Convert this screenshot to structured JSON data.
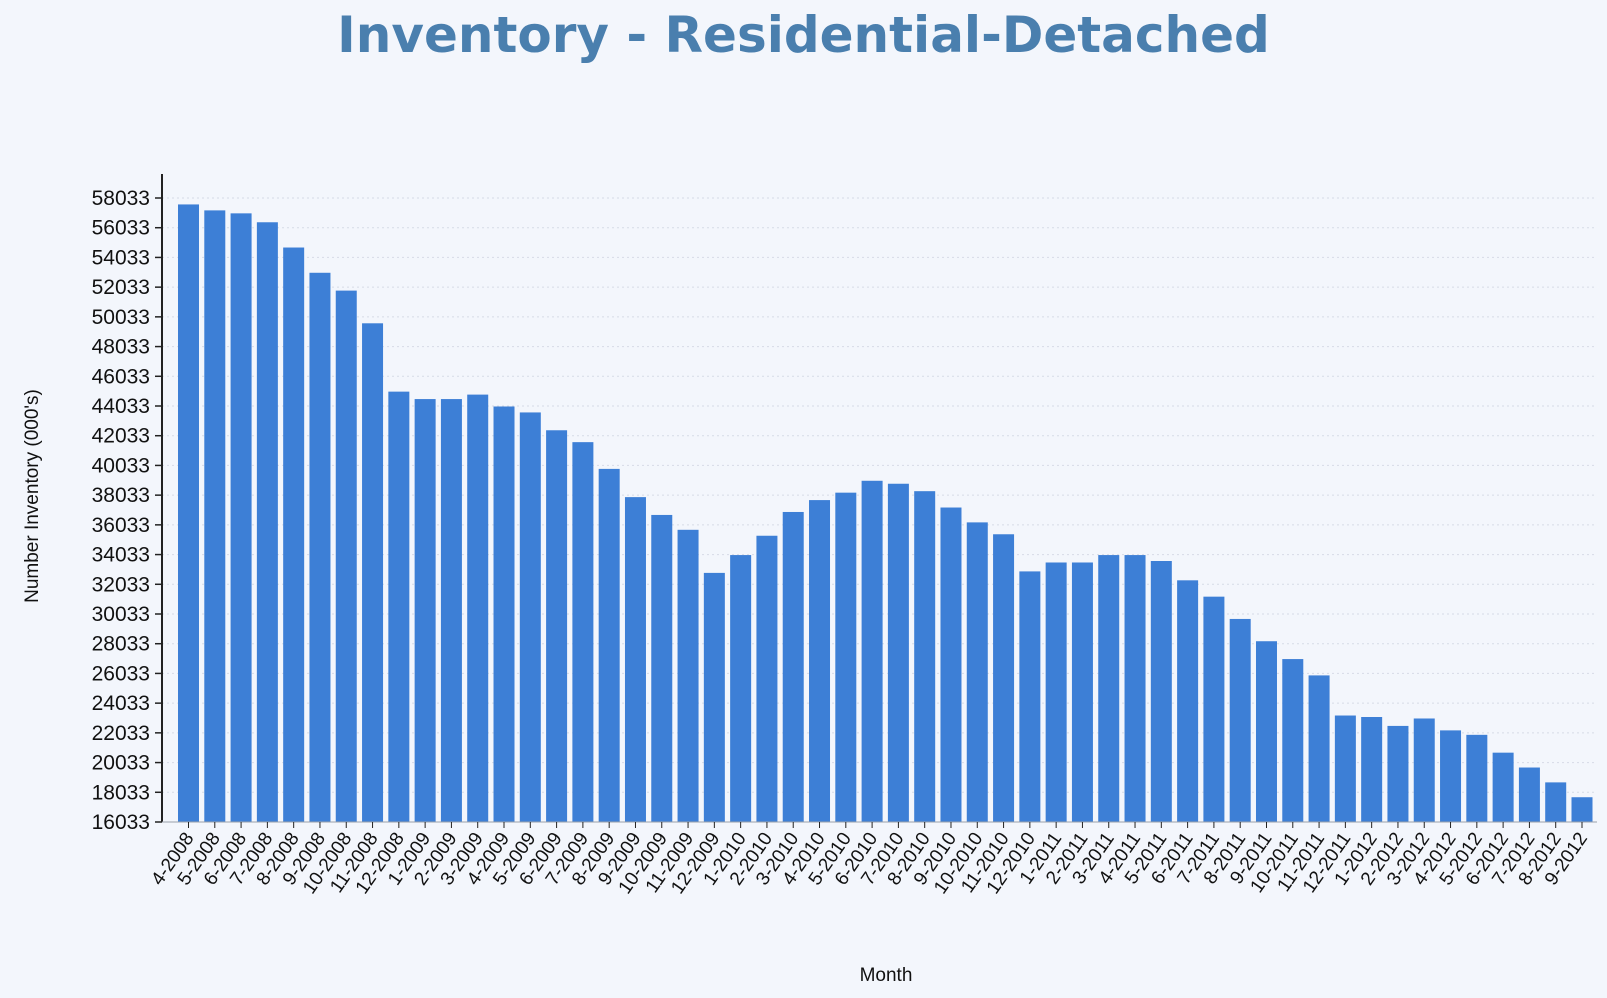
{
  "chart_data": {
    "type": "bar",
    "title": "Inventory - Residential-Detached",
    "xlabel": "Month",
    "ylabel": "Number Inventory (000's)",
    "ylim": [
      16033,
      58033
    ],
    "yticks": [
      16033,
      18033,
      20033,
      22033,
      24033,
      26033,
      28033,
      30033,
      32033,
      34033,
      36033,
      38033,
      40033,
      42033,
      44033,
      46033,
      48033,
      50033,
      52033,
      54033,
      56033,
      58033
    ],
    "grid": true,
    "legend": "none",
    "colors": {
      "bar": "#3d7fd6",
      "title": "#4a7fae",
      "axis": "#222222",
      "grid": "#d6dbe6"
    },
    "categories": [
      "4-2008",
      "5-2008",
      "6-2008",
      "7-2008",
      "8-2008",
      "9-2008",
      "10-2008",
      "11-2008",
      "12-2008",
      "1-2009",
      "2-2009",
      "3-2009",
      "4-2009",
      "5-2009",
      "6-2009",
      "7-2009",
      "8-2009",
      "9-2009",
      "10-2009",
      "11-2009",
      "12-2009",
      "1-2010",
      "2-2010",
      "3-2010",
      "4-2010",
      "5-2010",
      "6-2010",
      "7-2010",
      "8-2010",
      "9-2010",
      "10-2010",
      "11-2010",
      "12-2010",
      "1-2011",
      "2-2011",
      "3-2011",
      "4-2011",
      "5-2011",
      "6-2011",
      "7-2011",
      "8-2011",
      "9-2011",
      "10-2011",
      "11-2011",
      "12-2011",
      "1-2012",
      "2-2012",
      "3-2012",
      "4-2012",
      "5-2012",
      "6-2012",
      "7-2012",
      "8-2012",
      "9-2012"
    ],
    "values": [
      57600,
      57200,
      57000,
      56400,
      54700,
      53000,
      51800,
      49600,
      45000,
      44500,
      44500,
      44800,
      44000,
      43600,
      42400,
      41600,
      39800,
      37900,
      36700,
      35700,
      32800,
      34000,
      35300,
      36900,
      37700,
      38200,
      39000,
      38800,
      38300,
      37200,
      36200,
      35400,
      32900,
      33500,
      33500,
      34000,
      34000,
      33600,
      32300,
      31200,
      29700,
      28200,
      27000,
      25900,
      23200,
      23100,
      22500,
      23000,
      22200,
      21900,
      20700,
      19700,
      18700,
      17700
    ]
  }
}
